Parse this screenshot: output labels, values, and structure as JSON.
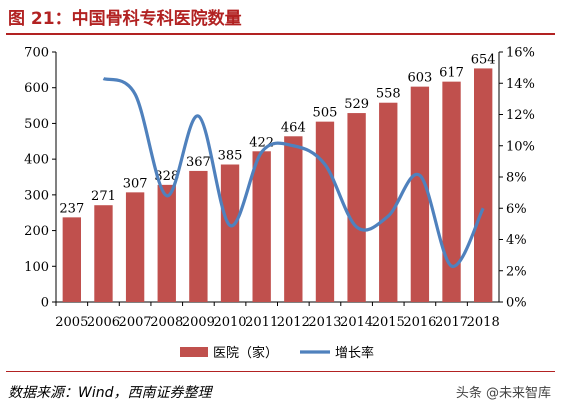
{
  "header": {
    "title": "图 21：中国骨科专科医院数量"
  },
  "footer": {
    "source": "数据来源：Wind，西南证券整理",
    "watermark": "头条 @未来智库"
  },
  "chart_data": {
    "type": "bar",
    "categories": [
      "2005",
      "2006",
      "2007",
      "2008",
      "2009",
      "2010",
      "2011",
      "2012",
      "2013",
      "2014",
      "2015",
      "2016",
      "2017",
      "2018"
    ],
    "series": [
      {
        "name": "医院（家）",
        "type": "bar",
        "axis": "left",
        "color": "#c0504d",
        "values": [
          237,
          271,
          307,
          328,
          367,
          385,
          422,
          464,
          505,
          529,
          558,
          603,
          617,
          654
        ],
        "data_labels": [
          "237",
          "271",
          "307",
          "328",
          "367",
          "385",
          "422",
          "464",
          "505",
          "529",
          "558",
          "603",
          "617",
          "654"
        ]
      },
      {
        "name": "增长率",
        "type": "line",
        "axis": "right",
        "color": "#4f81bd",
        "values": [
          null,
          14.3,
          13.3,
          6.8,
          11.9,
          4.9,
          9.6,
          10.0,
          8.8,
          4.8,
          5.5,
          8.1,
          2.3,
          6.0
        ]
      }
    ],
    "y_left": {
      "ylim": [
        0,
        700
      ],
      "ticks": [
        "0",
        "100",
        "200",
        "300",
        "400",
        "500",
        "600",
        "700"
      ]
    },
    "y_right": {
      "ylim": [
        0,
        16
      ],
      "ticks": [
        "0%",
        "2%",
        "4%",
        "6%",
        "8%",
        "10%",
        "12%",
        "14%",
        "16%"
      ]
    },
    "legend": {
      "position": "bottom",
      "items": [
        "医院（家）",
        "增长率"
      ]
    },
    "grid": false
  }
}
